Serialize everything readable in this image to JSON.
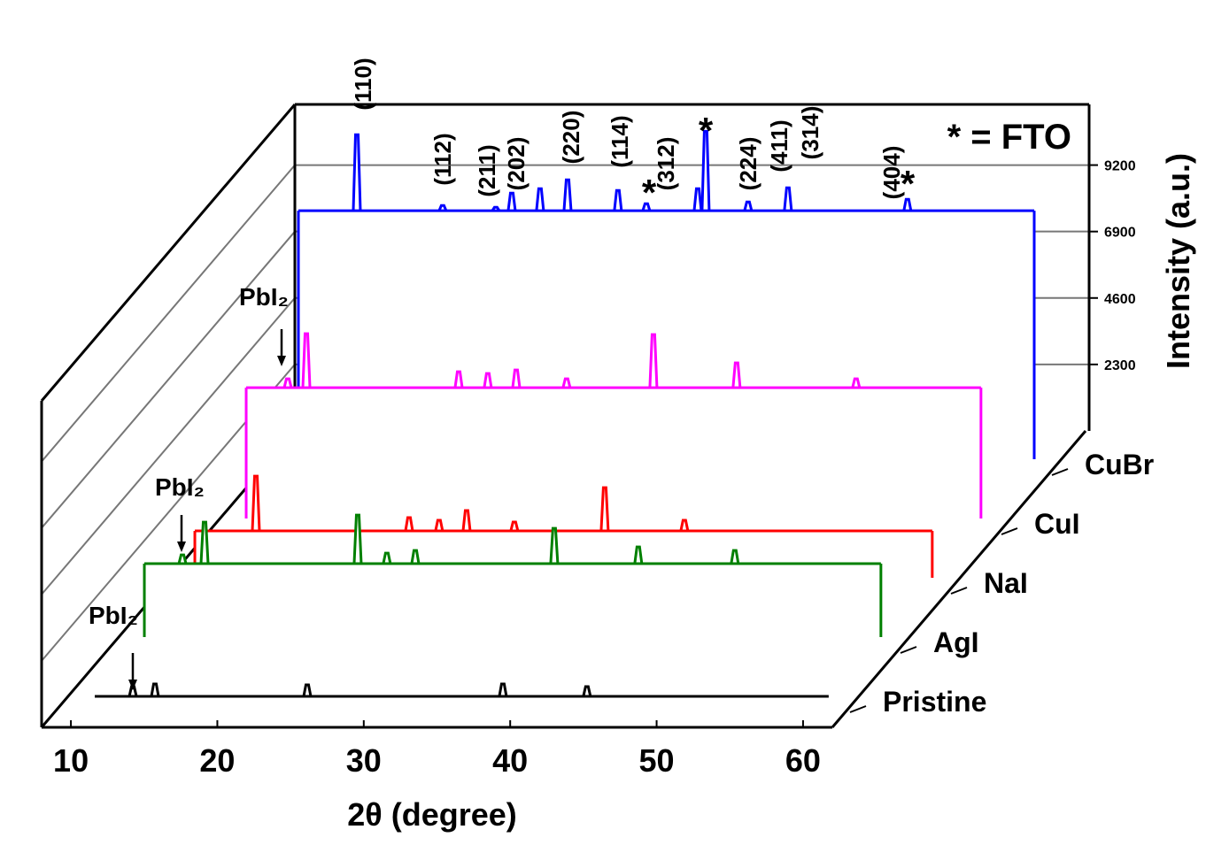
{
  "chart_data": {
    "type": "waterfall",
    "xlabel": "2θ (degree)",
    "ylabel": "Intensity (a.u.)",
    "xlim": [
      8,
      62
    ],
    "xticks": [
      10,
      20,
      30,
      40,
      50,
      60
    ],
    "ylim": [
      0,
      11300
    ],
    "yticks": [
      2300,
      4600,
      6900,
      9200
    ],
    "grid": true,
    "series": [
      {
        "name": "Pristine",
        "color": "#000000",
        "baseline": 0,
        "xrange": [
          11.63,
          61.75
        ],
        "x": [
          14.23,
          15.74,
          26.14,
          39.5,
          45.24
        ],
        "values": [
          337,
          428,
          398,
          428,
          337
        ]
      },
      {
        "name": "AgI",
        "color": "#008000",
        "baseline": 2540,
        "xrange": [
          11.57,
          61.87
        ],
        "x": [
          14.17,
          15.68,
          26.14,
          28.13,
          30.07,
          39.56,
          45.3,
          51.89
        ],
        "values": [
          2846,
          3978,
          4223,
          2907,
          2999,
          3764,
          3121,
          2999
        ]
      },
      {
        "name": "NaI",
        "color": "#ff0000",
        "baseline": 1622,
        "xrange": [
          11.57,
          61.93
        ],
        "x": [
          15.74,
          26.2,
          28.25,
          30.13,
          33.39,
          39.56,
          45.0
        ],
        "values": [
          3519,
          2081,
          1989,
          2326,
          1928,
          3121,
          1989
        ]
      },
      {
        "name": "CuI",
        "color": "#ff00ff",
        "baseline": 4530,
        "xrange": [
          11.63,
          61.81
        ],
        "x": [
          14.47,
          15.74,
          26.14,
          28.13,
          30.07,
          33.51,
          39.44,
          45.12,
          53.28
        ],
        "values": [
          4835,
          6395,
          5080,
          5018,
          5140,
          4835,
          6365,
          5386,
          4835
        ]
      },
      {
        "name": "CuBr",
        "color": "#0000ff",
        "baseline": 8600,
        "xrange": [
          11.75,
          62.0
        ],
        "x": [
          15.74,
          21.6,
          25.23,
          26.32,
          28.25,
          30.13,
          33.57,
          35.51,
          39.02,
          39.56,
          42.46,
          45.18,
          53.34
        ],
        "values": [
          11230,
          8780,
          8720,
          9210,
          9364,
          9670,
          9302,
          8843,
          9364,
          11350,
          8905,
          9394,
          8996
        ]
      }
    ],
    "peak_labels": [
      "(110)",
      "(112)",
      "(211)",
      "(202)",
      "(220)",
      "(114)",
      "(312)",
      "(224)",
      "(411)",
      "(314)",
      "(404)"
    ],
    "fto_marks": [
      "*",
      "*",
      "*"
    ],
    "fto_note": "* = FTO",
    "pbi2_labels": [
      "PbI₂",
      "PbI₂",
      "PbI₂"
    ]
  }
}
